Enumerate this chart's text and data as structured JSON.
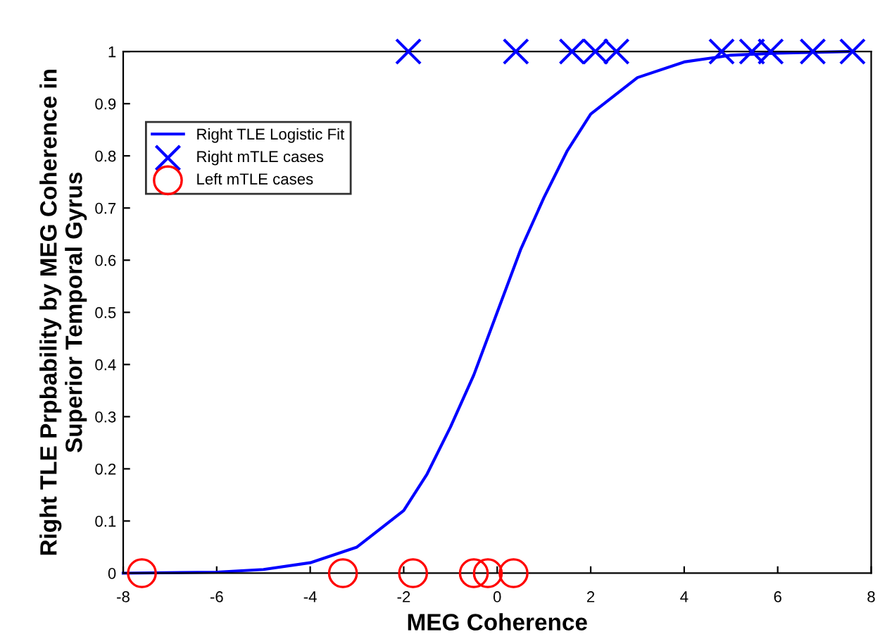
{
  "chart_data": {
    "type": "line",
    "xlabel": "MEG Coherence",
    "ylabel": "Right TLE Prpbability by MEG Coherence in\nSuperior Temporal Gyrus",
    "xlim": [
      -8,
      8
    ],
    "ylim": [
      0,
      1
    ],
    "xticks": [
      -8,
      -6,
      -4,
      -2,
      0,
      2,
      4,
      6,
      8
    ],
    "yticks": [
      0,
      0.1,
      0.2,
      0.3,
      0.4,
      0.5,
      0.6,
      0.7,
      0.8,
      0.9,
      1
    ],
    "grid": false,
    "legend": "top left",
    "series": [
      {
        "name": "Right TLE Logistic Fit",
        "color": "#0000ff",
        "marker": "none",
        "line_style": "solid",
        "x": [
          -8,
          -6,
          -5,
          -4,
          -3,
          -2,
          -1.5,
          -1,
          -0.5,
          0,
          0.5,
          1,
          1.5,
          2,
          3,
          4,
          5,
          6,
          7.5
        ],
        "values": [
          0,
          0.002,
          0.007,
          0.02,
          0.05,
          0.12,
          0.19,
          0.28,
          0.38,
          0.5,
          0.62,
          0.72,
          0.81,
          0.88,
          0.95,
          0.98,
          0.993,
          0.997,
          1
        ]
      },
      {
        "name": "Right mTLE cases",
        "type": "scatter",
        "color": "#0000ff",
        "marker": "cross",
        "x": [
          -1.9,
          0.4,
          1.6,
          2.1,
          2.55,
          4.8,
          5.45,
          5.85,
          6.75,
          7.6
        ],
        "values": [
          1,
          1,
          1,
          1,
          1,
          1,
          1,
          1,
          1,
          1
        ]
      },
      {
        "name": "Left mTLE cases",
        "type": "scatter",
        "color": "#ff0000",
        "marker": "circle",
        "x": [
          -7.6,
          -3.3,
          -1.8,
          -0.5,
          -0.2,
          0.35
        ],
        "values": [
          0,
          0,
          0,
          0,
          0,
          0
        ]
      }
    ]
  }
}
